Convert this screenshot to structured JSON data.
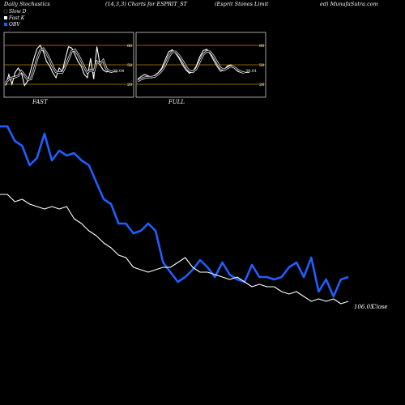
{
  "header": {
    "title": "Daily Stochastics",
    "params": "(14,3,3) Charts for ESPRIT_ST",
    "company": "(Esprit Stones Limit",
    "site": "ed) MunafaSutra.com"
  },
  "legend": [
    {
      "label": "Slow  D",
      "color": "#000000"
    },
    {
      "label": "Fast K",
      "color": "#ffffff"
    },
    {
      "label": "OBV",
      "color": "#1f5fff"
    }
  ],
  "colors": {
    "obv": "#1f5fff",
    "close": "#ffffff",
    "panel_grid": "#b8860b",
    "background": "#000000"
  },
  "chart_data": [
    {
      "type": "line",
      "panel": "FAST",
      "title": "FAST",
      "ylim": [
        0,
        100
      ],
      "yticks": [
        20,
        50,
        80
      ],
      "last_value_label": "39.04",
      "series": [
        {
          "name": "Fast K",
          "values": [
            18,
            35,
            20,
            38,
            45,
            38,
            18,
            25,
            42,
            60,
            75,
            80,
            70,
            55,
            48,
            38,
            30,
            45,
            40,
            60,
            78,
            76,
            66,
            55,
            48,
            35,
            30,
            60,
            28,
            78,
            50,
            42,
            39,
            40,
            39
          ]
        },
        {
          "name": "Slow  D",
          "values": [
            22,
            28,
            30,
            31,
            33,
            40,
            34,
            27,
            28,
            42,
            59,
            72,
            75,
            68,
            58,
            47,
            39,
            38,
            38,
            48,
            59,
            71,
            73,
            66,
            56,
            46,
            38,
            42,
            39,
            55,
            52,
            57,
            44,
            40,
            39
          ]
        }
      ]
    },
    {
      "type": "line",
      "panel": "FULL",
      "title": "FULL",
      "ylim": [
        0,
        100
      ],
      "yticks": [
        20,
        50,
        80
      ],
      "last_value_label": "38.01",
      "series": [
        {
          "name": "Fast K",
          "values": [
            28,
            32,
            35,
            33,
            30,
            34,
            38,
            45,
            58,
            70,
            73,
            68,
            60,
            50,
            42,
            37,
            40,
            48,
            62,
            72,
            74,
            67,
            57,
            48,
            40,
            42,
            48,
            50,
            45,
            40,
            38,
            38
          ]
        },
        {
          "name": "Slow  D",
          "values": [
            25,
            28,
            30,
            31,
            31,
            32,
            36,
            41,
            50,
            62,
            70,
            70,
            64,
            56,
            47,
            40,
            39,
            44,
            55,
            66,
            71,
            70,
            63,
            54,
            45,
            42,
            45,
            48,
            46,
            42,
            39,
            38
          ]
        }
      ]
    },
    {
      "type": "line",
      "panel": "price",
      "series": [
        {
          "name": "OBV",
          "values": [
            88,
            88,
            82,
            80,
            72,
            75,
            85,
            74,
            78,
            76,
            77,
            74,
            72,
            65,
            58,
            56,
            48,
            48,
            44,
            45,
            48,
            45,
            32,
            28,
            24,
            26,
            29,
            33,
            30,
            26,
            32,
            27,
            25,
            24,
            31,
            26,
            26,
            25,
            26,
            30,
            32,
            26,
            34,
            20,
            25,
            18,
            25,
            26
          ]
        },
        {
          "name": "Close",
          "values": [
            60,
            60,
            57,
            58,
            56,
            55,
            54,
            55,
            54,
            55,
            50,
            48,
            45,
            43,
            40,
            38,
            35,
            34,
            30,
            29,
            28,
            29,
            30,
            30,
            32,
            34,
            30,
            28,
            28,
            27,
            26,
            25,
            26,
            24,
            22,
            23,
            22,
            22,
            20,
            19,
            20,
            18,
            16,
            17,
            16,
            17,
            15,
            16
          ]
        }
      ],
      "last_close_label": "106.05",
      "close_word": "Close"
    }
  ]
}
